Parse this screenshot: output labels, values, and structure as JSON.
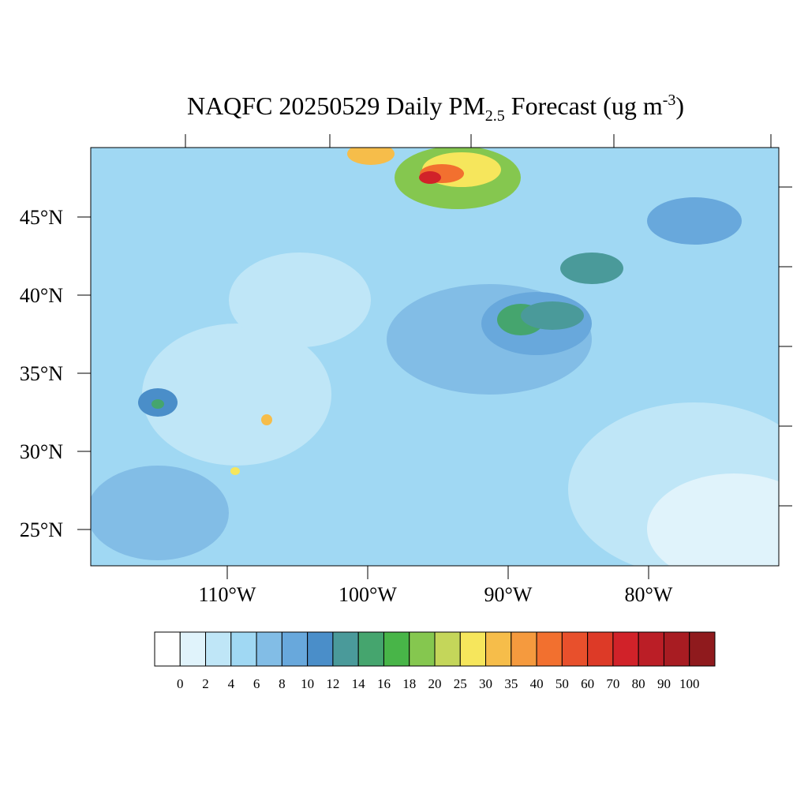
{
  "title": {
    "text": "NAQFC 20250529 Daily PM",
    "subscript": "2.5",
    "middle": " Forecast (ug m",
    "superscript": "-3",
    "end": ")"
  },
  "map": {
    "lat_ticks": [
      {
        "value": 45,
        "label": "45°N"
      },
      {
        "value": 40,
        "label": "40°N"
      },
      {
        "value": 35,
        "label": "35°N"
      },
      {
        "value": 30,
        "label": "30°N"
      },
      {
        "value": 25,
        "label": "25°N"
      }
    ],
    "lon_ticks": [
      {
        "value": -110,
        "label": "110°W"
      },
      {
        "value": -100,
        "label": "100°W"
      },
      {
        "value": -90,
        "label": "90°W"
      },
      {
        "value": -80,
        "label": "80°W"
      }
    ]
  },
  "colorbar": {
    "levels": [
      0,
      2,
      4,
      6,
      8,
      10,
      12,
      14,
      16,
      18,
      20,
      25,
      30,
      35,
      40,
      50,
      60,
      70,
      80,
      90,
      100
    ],
    "colors": [
      "#ffffff",
      "#e0f3fb",
      "#bfe6f7",
      "#a0d8f3",
      "#82bde6",
      "#68a8dc",
      "#4a8ec9",
      "#4a9a9a",
      "#45a56e",
      "#48b548",
      "#85c74f",
      "#c4d65a",
      "#f6e65c",
      "#f6bd4a",
      "#f59a3e",
      "#f2702f",
      "#e8502c",
      "#dd3a27",
      "#d12229",
      "#bb1e26",
      "#a81c22",
      "#8f1a1d"
    ]
  }
}
